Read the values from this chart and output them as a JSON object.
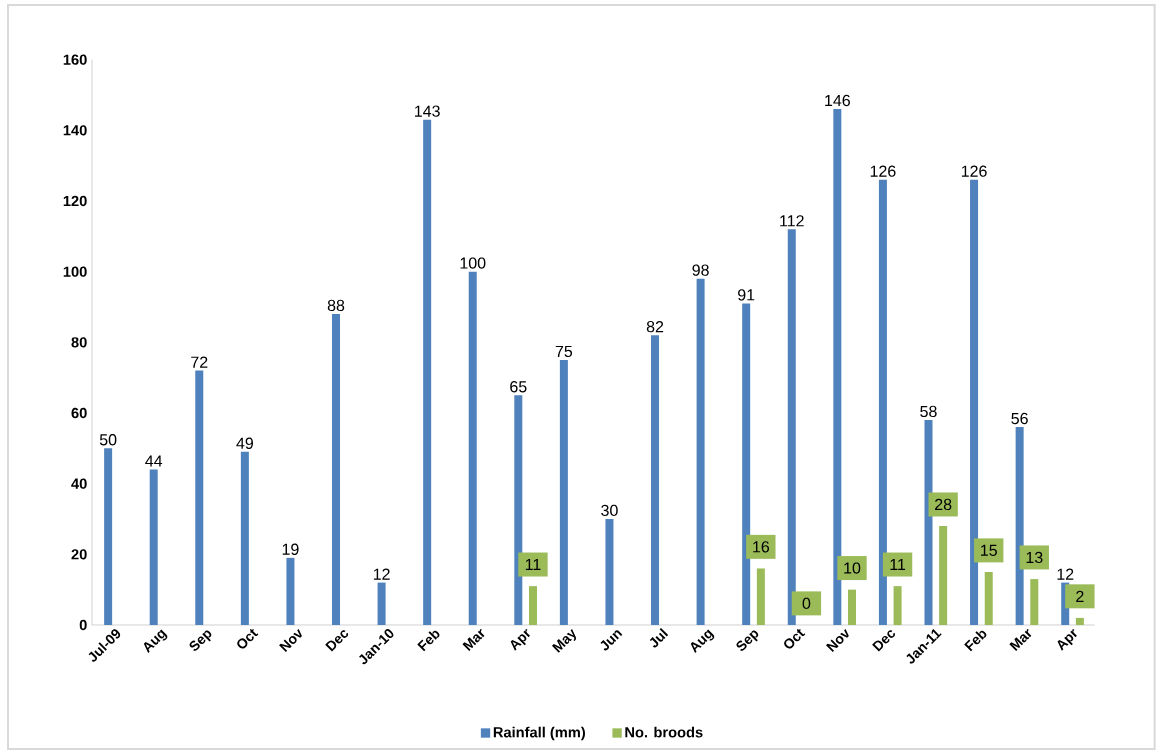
{
  "chart_data": {
    "type": "bar",
    "categories": [
      "Jul-09",
      "Aug",
      "Sep",
      "Oct",
      "Nov",
      "Dec",
      "Jan-10",
      "Feb",
      "Mar",
      "Apr",
      "May",
      "Jun",
      "Jul",
      "Aug",
      "Sep",
      "Oct",
      "Nov",
      "Dec",
      "Jan-11",
      "Feb",
      "Mar",
      "Apr"
    ],
    "series": [
      {
        "name": "Rainfall (mm)",
        "color": "#4f81bd",
        "values": [
          50,
          44,
          72,
          49,
          19,
          88,
          12,
          143,
          100,
          65,
          75,
          30,
          82,
          98,
          91,
          112,
          146,
          126,
          58,
          126,
          56,
          12
        ]
      },
      {
        "name": "No. broods",
        "color": "#9bbb59",
        "values": [
          null,
          null,
          null,
          null,
          null,
          null,
          null,
          null,
          null,
          11,
          null,
          null,
          null,
          null,
          16,
          0,
          10,
          11,
          28,
          15,
          13,
          2
        ]
      }
    ],
    "ylim": [
      0,
      160
    ],
    "yticks": [
      0,
      20,
      40,
      60,
      80,
      100,
      120,
      140,
      160
    ],
    "data_labels": true,
    "legend": "bottom",
    "grid": false
  }
}
